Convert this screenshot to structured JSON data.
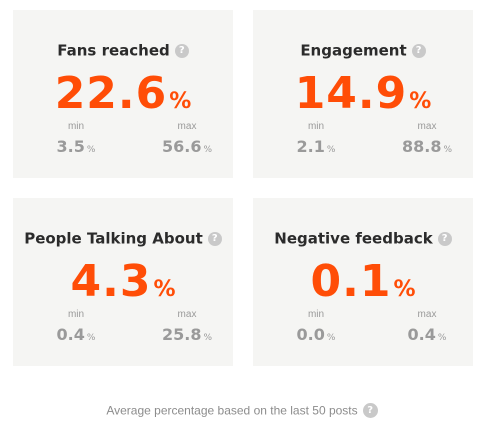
{
  "cards": [
    {
      "title": "Fans reached",
      "help_icon": "help-icon",
      "value": "22.6",
      "unit": "%",
      "min_label": "min",
      "min_value": "3.5",
      "min_unit": "%",
      "max_label": "max",
      "max_value": "56.6",
      "max_unit": "%"
    },
    {
      "title": "Engagement",
      "help_icon": "help-icon",
      "value": "14.9",
      "unit": "%",
      "min_label": "min",
      "min_value": "2.1",
      "min_unit": "%",
      "max_label": "max",
      "max_value": "88.8",
      "max_unit": "%"
    },
    {
      "title": "People Talking About",
      "help_icon": "help-icon",
      "value": "4.3",
      "unit": "%",
      "min_label": "min",
      "min_value": "0.4",
      "min_unit": "%",
      "max_label": "max",
      "max_value": "25.8",
      "max_unit": "%"
    },
    {
      "title": "Negative feedback",
      "help_icon": "help-icon",
      "value": "0.1",
      "unit": "%",
      "min_label": "min",
      "min_value": "0.0",
      "min_unit": "%",
      "max_label": "max",
      "max_value": "0.4",
      "max_unit": "%"
    }
  ],
  "help_glyph": "?",
  "footer": {
    "text": "Average percentage based on the last 50 posts",
    "help_icon": "help-icon"
  },
  "colors": {
    "accent": "#ff4d07",
    "card_background": "#f5f5f3",
    "muted_text": "#9a9a9a",
    "help_icon": "#c9c9c9"
  }
}
